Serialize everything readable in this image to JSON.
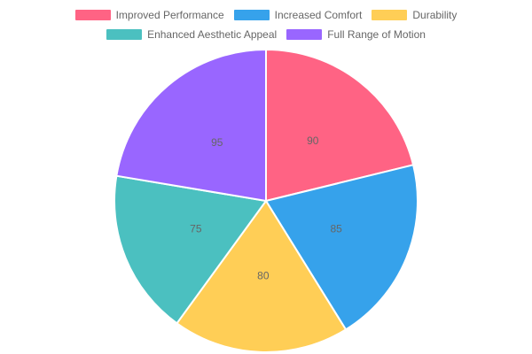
{
  "chart_data": {
    "type": "pie",
    "title": "",
    "legend_position": "top",
    "categories": [
      "Improved Performance",
      "Increased Comfort",
      "Durability",
      "Enhanced Aesthetic Appeal",
      "Full Range of Motion"
    ],
    "values": [
      90,
      85,
      80,
      75,
      95
    ],
    "colors": [
      "#ff6384",
      "#36a2eb",
      "#ffce56",
      "#4bc0c0",
      "#9966ff"
    ],
    "data_labels": [
      "90",
      "85",
      "80",
      "75",
      "95"
    ]
  }
}
